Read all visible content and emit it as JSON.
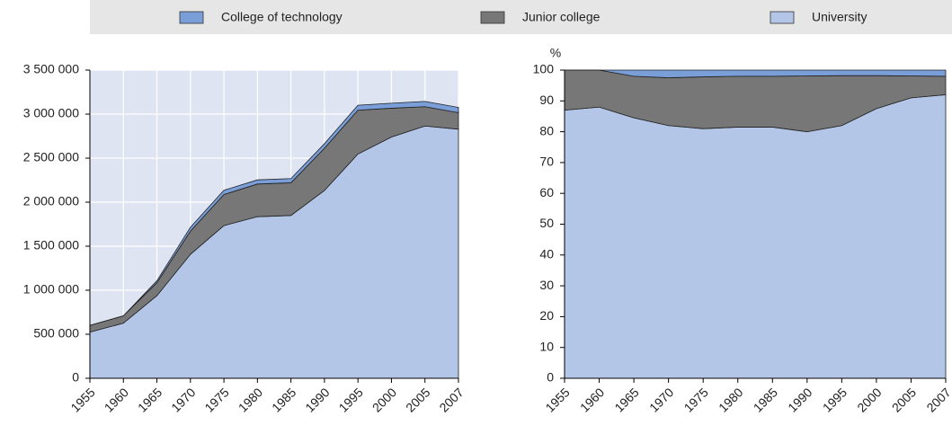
{
  "chart_data": [
    {
      "type": "stacked_area",
      "categories": [
        "1955",
        "1960",
        "1965",
        "1970",
        "1975",
        "1980",
        "1985",
        "1990",
        "1995",
        "2000",
        "2005",
        "2007"
      ],
      "series": [
        {
          "name": "College of technology",
          "color": "#7a9fd8",
          "values": [
            0,
            0,
            22000,
            44000,
            48000,
            47000,
            48000,
            52000,
            56000,
            57000,
            60000,
            60000
          ]
        },
        {
          "name": "Junior college",
          "color": "#777777",
          "values": [
            77000,
            83000,
            148000,
            263000,
            353000,
            371000,
            371000,
            479000,
            498000,
            327000,
            219000,
            187000
          ]
        },
        {
          "name": "University",
          "color": "#b3c6e7",
          "values": [
            524000,
            626000,
            938000,
            1408000,
            1734000,
            1835000,
            1849000,
            2133000,
            2547000,
            2740000,
            2865000,
            2829000
          ]
        }
      ],
      "ylim": [
        0,
        3500000
      ],
      "yticks": [
        0,
        {
          "value": 500000,
          "label": "500 000"
        },
        {
          "value": 1000000,
          "label": "1 000 000"
        },
        {
          "value": 1500000,
          "label": "1 500 000"
        },
        {
          "value": 2000000,
          "label": "2 000 000"
        },
        {
          "value": 2500000,
          "label": "2 500 000"
        },
        {
          "value": 3000000,
          "label": "3 000 000"
        },
        {
          "value": 3500000,
          "label": "3 500 000"
        }
      ],
      "grid": true,
      "plot_background": "#dfe4f3"
    },
    {
      "type": "stacked_area",
      "y_label": "%",
      "categories": [
        "1955",
        "1960",
        "1965",
        "1970",
        "1975",
        "1980",
        "1985",
        "1990",
        "1995",
        "2000",
        "2005",
        "2007"
      ],
      "series": [
        {
          "color": "#7a9fd8",
          "values": [
            0,
            0,
            2,
            2.5,
            2.2,
            2,
            2,
            1.9,
            1.8,
            1.8,
            1.9,
            2
          ]
        },
        {
          "color": "#777777",
          "values": [
            13,
            12,
            13.5,
            15.5,
            16.8,
            16.5,
            16.5,
            18.1,
            16.2,
            10.7,
            7.1,
            6
          ]
        },
        {
          "color": "#b3c6e7",
          "values": [
            87,
            88,
            84.5,
            82,
            81,
            81.5,
            81.5,
            80,
            82,
            87.5,
            91,
            92
          ]
        }
      ],
      "ylim": [
        0,
        100
      ],
      "yticks": [
        0,
        10,
        20,
        30,
        40,
        50,
        60,
        70,
        80,
        90,
        100
      ],
      "grid": false
    }
  ]
}
